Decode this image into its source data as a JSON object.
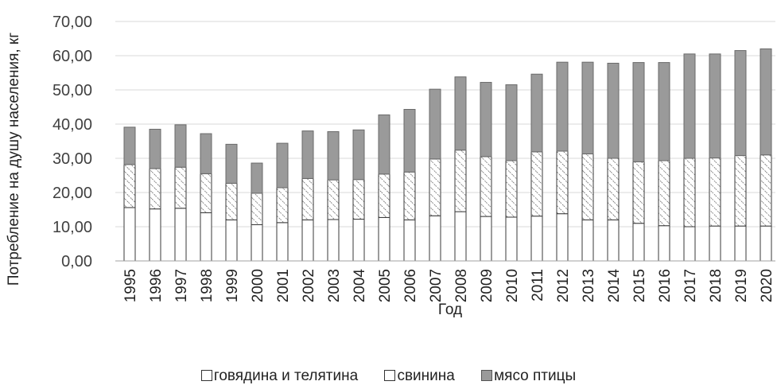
{
  "chart_data": {
    "type": "bar",
    "stacked": true,
    "title": "",
    "xlabel": "Год",
    "ylabel": "Потребление на душу населения, кг",
    "ylim": [
      0,
      70
    ],
    "yticks": [
      "0,00",
      "10,00",
      "20,00",
      "30,00",
      "40,00",
      "50,00",
      "60,00",
      "70,00"
    ],
    "grid": true,
    "legend_position": "bottom",
    "categories": [
      "1995",
      "1996",
      "1997",
      "1998",
      "1999",
      "2000",
      "2001",
      "2002",
      "2003",
      "2004",
      "2005",
      "2006",
      "2007",
      "2008",
      "2009",
      "2010",
      "2011",
      "2012",
      "2013",
      "2014",
      "2015",
      "2016",
      "2017",
      "2018",
      "2019",
      "2020"
    ],
    "series": [
      {
        "name": "говядина и телятина",
        "color": "#ffffff",
        "values": [
          15.6,
          15.2,
          15.4,
          14.1,
          12.0,
          10.6,
          11.2,
          12.0,
          12.1,
          12.2,
          12.7,
          12.0,
          13.2,
          14.4,
          13.0,
          12.8,
          13.1,
          13.8,
          12.0,
          12.0,
          11.0,
          10.3,
          10.0,
          10.2,
          10.2,
          10.2
        ]
      },
      {
        "name": "свинина",
        "color": "#ffffff",
        "pattern": "hatch",
        "values": [
          12.6,
          11.8,
          12.0,
          11.4,
          10.7,
          9.2,
          10.2,
          12.1,
          11.6,
          11.6,
          12.7,
          14.0,
          16.6,
          18.0,
          17.5,
          16.5,
          18.8,
          18.3,
          19.3,
          18.0,
          18.0,
          19.0,
          20.0,
          19.9,
          20.6,
          20.8
        ]
      },
      {
        "name": "мясо птицы",
        "color": "#9a9a9a",
        "values": [
          10.9,
          11.5,
          12.4,
          11.7,
          11.4,
          8.8,
          13.0,
          13.9,
          14.1,
          14.5,
          17.3,
          18.3,
          20.4,
          21.4,
          21.7,
          22.2,
          22.7,
          26.0,
          26.8,
          27.8,
          29.0,
          28.7,
          30.5,
          30.4,
          30.7,
          31.0
        ]
      }
    ]
  }
}
